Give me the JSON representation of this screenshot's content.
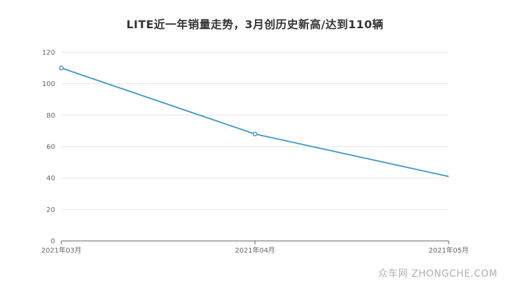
{
  "chart_data": {
    "type": "line",
    "title": "LITE近一年销量走势，3月创历史新高/达到110辆",
    "categories": [
      "2021年03月",
      "2021年04月",
      "2021年05月"
    ],
    "series": [
      {
        "values": [
          110,
          68,
          41
        ]
      }
    ],
    "ylim": [
      0,
      120
    ],
    "yticks": [
      0,
      20,
      40,
      60,
      80,
      100,
      120
    ],
    "grid": true,
    "line_color": "#4a9bc8"
  },
  "watermark": "众车网 ZHONGCHE.COM"
}
